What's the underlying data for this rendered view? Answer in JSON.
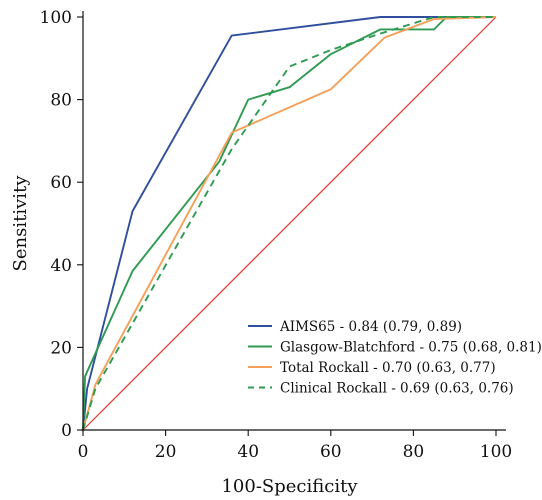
{
  "chart_data": {
    "type": "line",
    "title": "",
    "xlabel": "100-Specificity",
    "ylabel": "Sensitivity",
    "xlim": [
      0,
      100
    ],
    "ylim": [
      0,
      100
    ],
    "xticks": [
      0,
      20,
      40,
      60,
      80,
      100
    ],
    "yticks": [
      0,
      20,
      40,
      60,
      80,
      100
    ],
    "grid": false,
    "legend_position": "bottom-right",
    "reference_line": {
      "x": [
        0,
        100
      ],
      "y": [
        0,
        100
      ],
      "color": "#e8322f"
    },
    "series": [
      {
        "name": "AIMS65 - 0.84 (0.79, 0.89)",
        "color": "#2f4f9e",
        "dash": "solid",
        "x": [
          0,
          1,
          12,
          36,
          72,
          100
        ],
        "y": [
          0,
          10,
          53,
          95.5,
          100,
          100
        ]
      },
      {
        "name": "Glasgow-Blatchford - 0.75 (0.68, 0.81)",
        "color": "#2e9a52",
        "dash": "solid",
        "x": [
          0,
          0.5,
          12,
          33,
          40,
          50,
          60,
          72,
          85,
          88,
          100
        ],
        "y": [
          0,
          13,
          38.5,
          65,
          80,
          83,
          91,
          97,
          97,
          100,
          100
        ]
      },
      {
        "name": "Total Rockall - 0.70 (0.63, 0.77)",
        "color": "#f5a05a",
        "dash": "solid",
        "x": [
          0,
          3,
          36,
          60,
          73,
          85,
          100
        ],
        "y": [
          0,
          11,
          72,
          82.5,
          95,
          99.5,
          100
        ]
      },
      {
        "name": "Clinical Rockall - 0.69 (0.63, 0.76)",
        "color": "#2e9a52",
        "dash": "dashed",
        "x": [
          0,
          3,
          36,
          50,
          60,
          72,
          85,
          100
        ],
        "y": [
          0,
          10,
          68,
          88,
          92,
          96,
          100,
          100
        ]
      }
    ]
  }
}
